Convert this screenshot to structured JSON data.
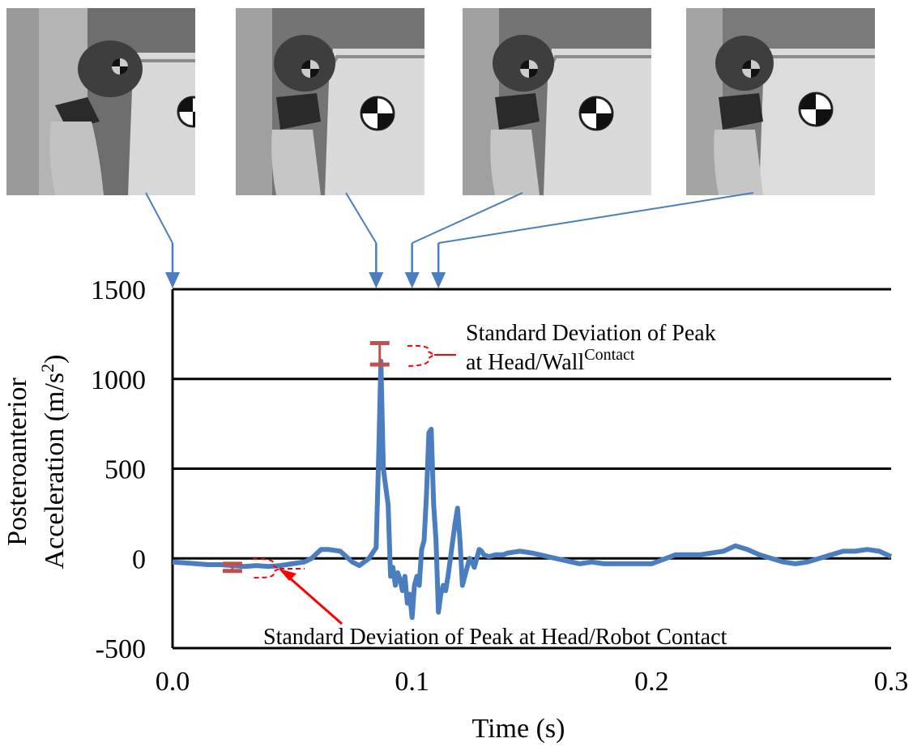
{
  "chart_data": {
    "type": "line",
    "title": "",
    "xlabel": "Time (s)",
    "ylabel_line1": "Posteroanterior",
    "ylabel_line2": "Acceleration (m/s",
    "ylabel_sup": "2",
    "ylabel_end": ")",
    "xlim": [
      0.0,
      0.3
    ],
    "ylim": [
      -500,
      1500
    ],
    "x_ticks": [
      "0.0",
      "0.1",
      "0.2",
      "0.3"
    ],
    "y_ticks": [
      "-500",
      "0",
      "500",
      "1000",
      "1500"
    ],
    "grid": "horizontal",
    "series": [
      {
        "color": "#4a7ebf",
        "x": [
          0.0,
          0.005,
          0.01,
          0.015,
          0.02,
          0.025,
          0.03,
          0.035,
          0.04,
          0.045,
          0.05,
          0.055,
          0.058,
          0.062,
          0.065,
          0.07,
          0.075,
          0.078,
          0.082,
          0.085,
          0.086,
          0.087,
          0.088,
          0.089,
          0.09,
          0.091,
          0.092,
          0.093,
          0.094,
          0.095,
          0.096,
          0.097,
          0.098,
          0.099,
          0.1,
          0.101,
          0.102,
          0.103,
          0.104,
          0.105,
          0.106,
          0.107,
          0.108,
          0.109,
          0.11,
          0.111,
          0.112,
          0.113,
          0.114,
          0.115,
          0.116,
          0.117,
          0.118,
          0.119,
          0.12,
          0.121,
          0.122,
          0.123,
          0.124,
          0.125,
          0.126,
          0.127,
          0.128,
          0.129,
          0.13,
          0.132,
          0.135,
          0.138,
          0.14,
          0.145,
          0.15,
          0.16,
          0.17,
          0.175,
          0.18,
          0.19,
          0.2,
          0.21,
          0.22,
          0.225,
          0.23,
          0.235,
          0.24,
          0.245,
          0.25,
          0.255,
          0.26,
          0.265,
          0.27,
          0.275,
          0.28,
          0.285,
          0.29,
          0.295,
          0.3
        ],
        "y": [
          -20,
          -25,
          -30,
          -35,
          -35,
          -40,
          -45,
          -40,
          -45,
          -40,
          -30,
          -20,
          0,
          50,
          50,
          40,
          -20,
          -40,
          0,
          60,
          550,
          1100,
          500,
          400,
          300,
          -100,
          -50,
          -150,
          -80,
          -120,
          -180,
          -100,
          -250,
          -200,
          -330,
          -150,
          -100,
          -150,
          50,
          100,
          350,
          700,
          720,
          300,
          100,
          -300,
          -200,
          -150,
          -180,
          -100,
          0,
          100,
          200,
          280,
          100,
          -150,
          -100,
          -50,
          0,
          -20,
          -50,
          0,
          50,
          40,
          20,
          10,
          20,
          20,
          30,
          40,
          30,
          0,
          -30,
          -20,
          -30,
          -30,
          -30,
          20,
          20,
          30,
          40,
          70,
          50,
          20,
          0,
          -20,
          -30,
          -20,
          0,
          20,
          40,
          40,
          50,
          40,
          10
        ]
      }
    ],
    "error_bars": [
      {
        "x": 0.0865,
        "low": 1080,
        "high": 1200,
        "color": "#c0504d"
      },
      {
        "x": 0.025,
        "low": -70,
        "high": -30,
        "color": "#c0504d"
      }
    ],
    "annotations": [
      {
        "line1": "Standard Deviation of  Peak",
        "line2": "at Head/Wall",
        "sup": "Contact"
      },
      {
        "text": "Standard Deviation of Peak at Head/Robot Contact"
      }
    ],
    "photo_markers_x": [
      0.0,
      0.085,
      0.1,
      0.111
    ],
    "line_color": "#4a7ebf",
    "error_color": "#c0504d",
    "arrow_color": "#ff0000"
  }
}
